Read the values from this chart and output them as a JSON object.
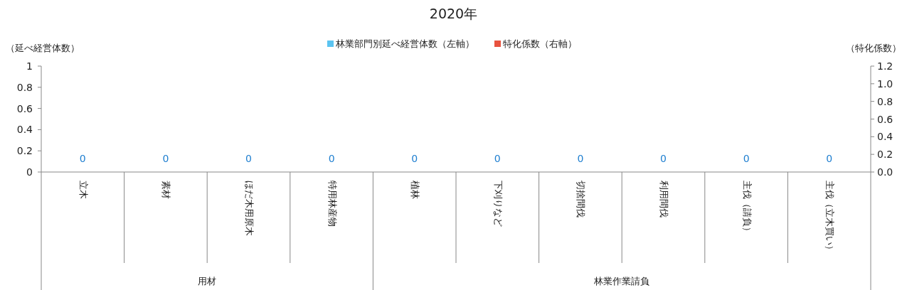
{
  "chart_data": {
    "type": "bar",
    "title": "2020年",
    "ylabel": "（延べ経営体数）",
    "y2label": "（特化係数）",
    "categories": [
      "立木",
      "素材",
      "ほだ木用原木",
      "特用林産物",
      "植林",
      "下刈りなど",
      "切捨間伐",
      "利用間伐",
      "主伐（請負）",
      "主伐（立木買い）"
    ],
    "annotations": [
      "用材",
      "林業作業請負"
    ],
    "series": [
      {
        "name": "林業部門別延べ経営体数（左軸）",
        "color": "#5bc4f1",
        "values": [
          0,
          0,
          0,
          0,
          0,
          0,
          0,
          0,
          0,
          0
        ]
      },
      {
        "name": "特化係数（右軸）",
        "type": "line",
        "color": "#e8533f",
        "values": [
          null,
          null,
          null,
          null,
          null,
          null,
          null,
          null,
          null,
          null
        ]
      }
    ],
    "ylim": [
      0,
      1
    ],
    "yticks": [
      0,
      0.2,
      0.4,
      0.6,
      0.8,
      1
    ],
    "y2lim": [
      0,
      1.2
    ],
    "y2ticks": [
      {
        "value": 0,
        "label": "0.0"
      },
      {
        "value": 0.2,
        "label": "0.2"
      },
      {
        "value": 0.4,
        "label": "0.4"
      },
      {
        "value": 0.6,
        "label": "0.6"
      },
      {
        "value": 0.8,
        "label": "0.8"
      },
      {
        "value": 1,
        "label": "1.0"
      },
      {
        "value": 1.2,
        "label": "1.2"
      }
    ],
    "data_labels": true,
    "legend": "top",
    "grid": false
  }
}
